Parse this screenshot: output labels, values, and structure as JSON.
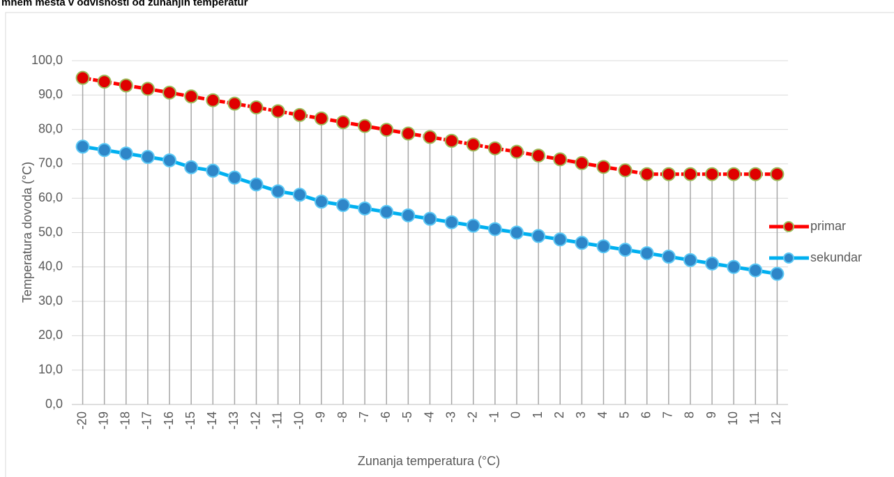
{
  "chart_data": {
    "type": "line",
    "title": "mnem mesta v odvisnosti od zunanjih temperatur",
    "xlabel": "Zunanja temperatura (°C)",
    "ylabel": "Temperatura dovoda (°C)",
    "categories": [
      -20,
      -19,
      -18,
      -17,
      -16,
      -15,
      -14,
      -13,
      -12,
      -11,
      -10,
      -9,
      -8,
      -7,
      -6,
      -5,
      -4,
      -3,
      -2,
      -1,
      0,
      1,
      2,
      3,
      4,
      5,
      6,
      7,
      8,
      9,
      10,
      11,
      12
    ],
    "series": [
      {
        "name": "primar",
        "color": "#ff0000",
        "marker_color": "#e00000",
        "marker_edge": "#9bbb59",
        "values": [
          95,
          93.9,
          92.8,
          91.8,
          90.7,
          89.6,
          88.5,
          87.5,
          86.4,
          85.3,
          84.2,
          83.2,
          82.1,
          81.0,
          79.9,
          78.8,
          77.8,
          76.7,
          75.6,
          74.5,
          73.5,
          72.4,
          71.3,
          70.2,
          69.1,
          68.1,
          67,
          67,
          67,
          67,
          67,
          67,
          67
        ]
      },
      {
        "name": "sekundar",
        "color": "#00b0f0",
        "marker_color": "#2e86c8",
        "marker_edge": "#5bc8f5",
        "values": [
          75,
          74,
          73,
          72,
          71,
          69,
          68,
          66,
          64,
          62,
          61,
          59,
          58,
          57,
          56,
          55,
          54,
          53,
          52,
          51,
          50,
          49,
          48,
          47,
          46,
          45,
          44,
          43,
          42,
          41,
          40,
          39,
          38
        ]
      }
    ],
    "ylim": [
      0,
      100
    ],
    "yticks": [
      {
        "value": 0,
        "label": "0,0"
      },
      {
        "value": 10,
        "label": "10,0"
      },
      {
        "value": 20,
        "label": "20,0"
      },
      {
        "value": 30,
        "label": "30,0"
      },
      {
        "value": 40,
        "label": "40,0"
      },
      {
        "value": 50,
        "label": "50,0"
      },
      {
        "value": 60,
        "label": "60,0"
      },
      {
        "value": 70,
        "label": "70,0"
      },
      {
        "value": 80,
        "label": "80,0"
      },
      {
        "value": 90,
        "label": "90,0"
      },
      {
        "value": 100,
        "label": "100,0"
      }
    ],
    "grid": true,
    "drop_lines": true,
    "legend": "right"
  }
}
